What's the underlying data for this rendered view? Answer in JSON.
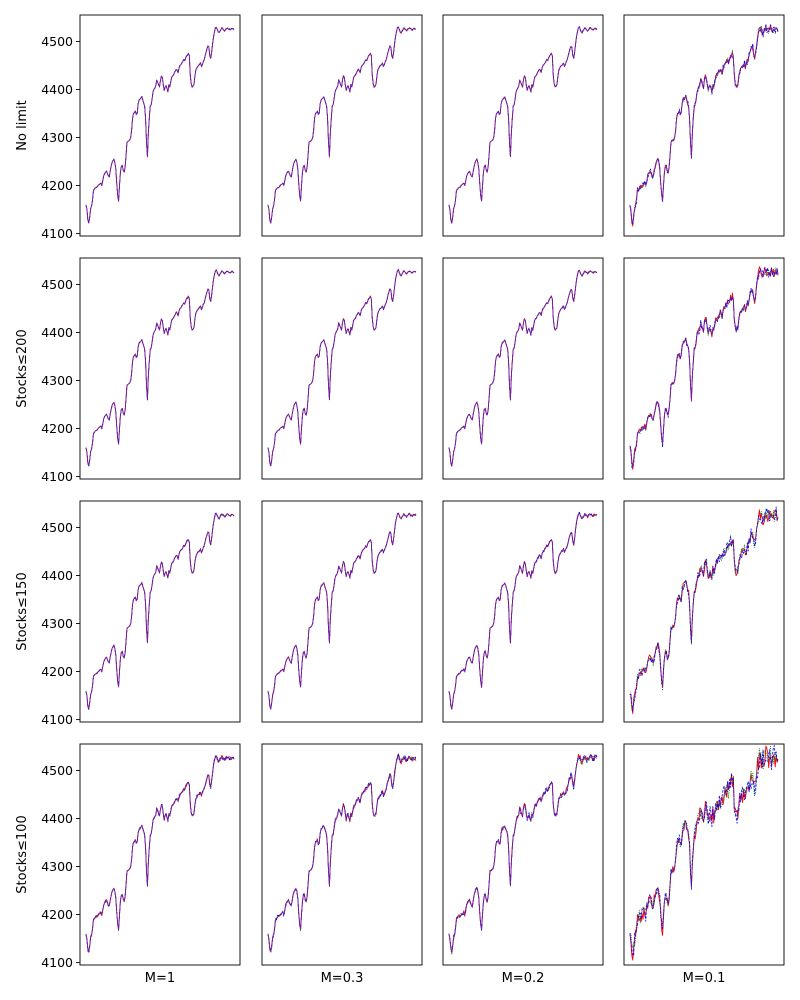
{
  "chart_data": {
    "type": "line",
    "layout": "4x4 grid of small multiples",
    "row_labels": [
      "No limit",
      "Stocks≤200",
      "Stocks≤150",
      "Stocks≤100"
    ],
    "col_labels": [
      "M=1",
      "M=0.3",
      "M=0.2",
      "M=0.1"
    ],
    "ylim": [
      4095,
      4555
    ],
    "yticks": [
      4100,
      4200,
      4300,
      4400,
      4500
    ],
    "ytick_labels": [
      "4100",
      "4200",
      "4300",
      "4400",
      "4500"
    ],
    "xticks_visible": false,
    "grid": false,
    "x": [
      0,
      1,
      2,
      3,
      4,
      5,
      6,
      7,
      8,
      9,
      10,
      11,
      12,
      13,
      14,
      15,
      16,
      17,
      18,
      19,
      20,
      21,
      22,
      23,
      24,
      25,
      26,
      27,
      28,
      29,
      30,
      31,
      32,
      33,
      34,
      35,
      36,
      37,
      38,
      39,
      40,
      41,
      42,
      43,
      44,
      45,
      46,
      47,
      48,
      49,
      50,
      51,
      52,
      53,
      54,
      55,
      56,
      57,
      58,
      59,
      60,
      61,
      62,
      63,
      64,
      65,
      66,
      67,
      68,
      69,
      70,
      71,
      72,
      73,
      74,
      75,
      76,
      77,
      78,
      79,
      80,
      81,
      82,
      83,
      84,
      85,
      86,
      87,
      88,
      89,
      90,
      91,
      92,
      93,
      94,
      95,
      96,
      97,
      98,
      99,
      100,
      101,
      102,
      103,
      104,
      105,
      106,
      107,
      108,
      109,
      110,
      111,
      112,
      113,
      114,
      115,
      116,
      117,
      118,
      119,
      120,
      121,
      122,
      123,
      124,
      125,
      126,
      127,
      128,
      129,
      130,
      131,
      132,
      133,
      134,
      135,
      136,
      137,
      138,
      139,
      140,
      141,
      142,
      143,
      144,
      145,
      146,
      147,
      148,
      149,
      150,
      151,
      152,
      153,
      154,
      155,
      156,
      157,
      158,
      159
    ],
    "base_series": [
      4160,
      4150,
      4128,
      4122,
      4135,
      4152,
      4158,
      4170,
      4190,
      4192,
      4195,
      4196,
      4197,
      4200,
      4202,
      4203,
      4205,
      4200,
      4210,
      4220,
      4225,
      4228,
      4230,
      4225,
      4220,
      4218,
      4230,
      4240,
      4248,
      4252,
      4255,
      4248,
      4235,
      4205,
      4180,
      4168,
      4200,
      4228,
      4240,
      4242,
      4232,
      4228,
      4238,
      4262,
      4290,
      4292,
      4293,
      4295,
      4300,
      4315,
      4340,
      4350,
      4352,
      4355,
      4348,
      4350,
      4370,
      4378,
      4380,
      4382,
      4385,
      4378,
      4372,
      4365,
      4340,
      4290,
      4260,
      4310,
      4340,
      4365,
      4368,
      4380,
      4395,
      4400,
      4403,
      4408,
      4420,
      4415,
      4410,
      4405,
      4420,
      4428,
      4425,
      4410,
      4398,
      4405,
      4408,
      4402,
      4395,
      4410,
      4405,
      4415,
      4425,
      4428,
      4430,
      4435,
      4438,
      4442,
      4440,
      4435,
      4445,
      4450,
      4452,
      4455,
      4458,
      4462,
      4460,
      4465,
      4470,
      4472,
      4475,
      4470,
      4430,
      4412,
      4405,
      4407,
      4410,
      4428,
      4440,
      4445,
      4448,
      4450,
      4452,
      4455,
      4448,
      4452,
      4458,
      4462,
      4470,
      4478,
      4485,
      4490,
      4488,
      4470,
      4465,
      4478,
      4495,
      4510,
      4520,
      4528,
      4530,
      4525,
      4520,
      4518,
      4522,
      4525,
      4528,
      4526,
      4524,
      4522,
      4525,
      4527,
      4528,
      4526,
      4525,
      4524,
      4526,
      4527,
      4526,
      4525
    ],
    "series": [
      {
        "color": "#ff0000",
        "style": "solid"
      },
      {
        "color": "#008000",
        "style": "dotted"
      },
      {
        "color": "#0000ff",
        "style": "dashed"
      }
    ],
    "noise_levels": [
      [
        1,
        1,
        1,
        6
      ],
      [
        1,
        1,
        1.3,
        7
      ],
      [
        1.5,
        1.5,
        2,
        10
      ],
      [
        3,
        4,
        5,
        18
      ]
    ]
  }
}
